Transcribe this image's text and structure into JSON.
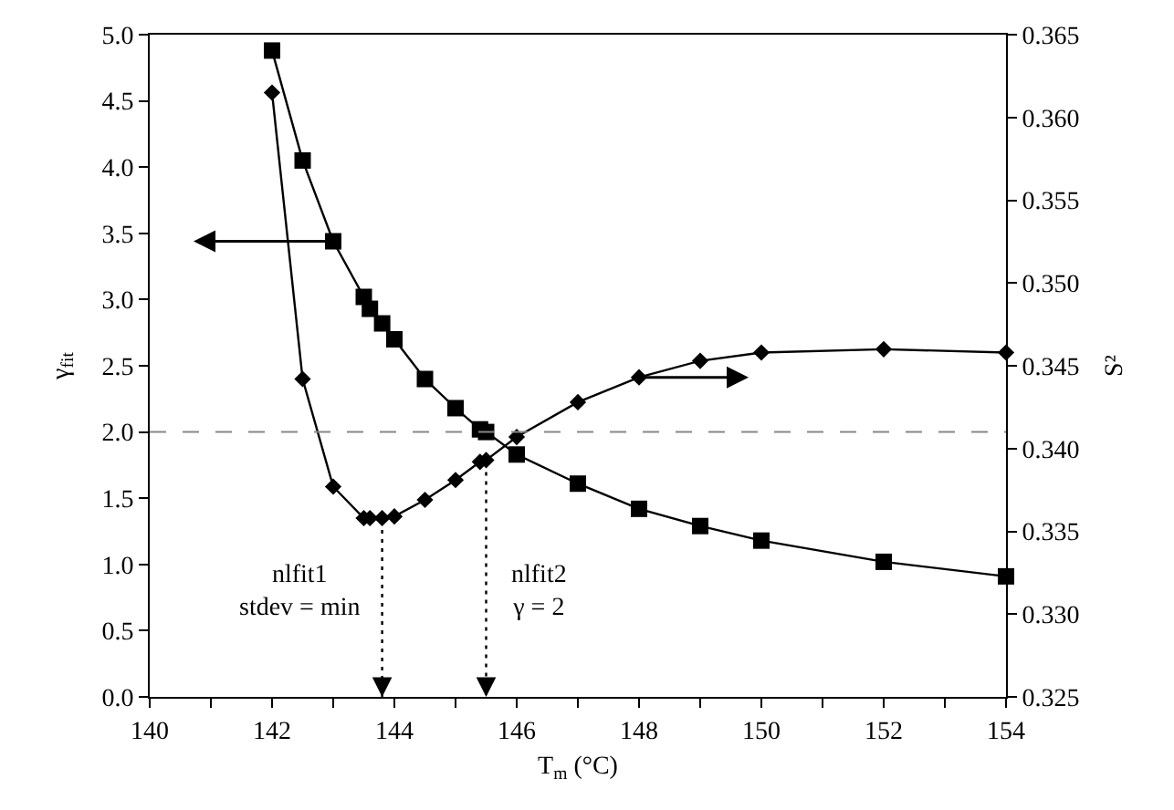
{
  "chart_data": {
    "type": "line",
    "xlabel": "T$_{m}$ (°C)",
    "ylabel": "γ$_{fit}$",
    "y2label": "S²",
    "series": [
      {
        "color": "#000000",
        "marker": "square",
        "x": [
          142,
          142.5,
          143,
          143.5,
          143.6,
          143.8,
          144,
          144.5,
          145,
          145.4,
          145.5,
          146,
          147,
          148,
          149,
          150,
          152,
          154
        ],
        "values": [
          4.88,
          4.05,
          3.44,
          3.02,
          2.93,
          2.82,
          2.7,
          2.4,
          2.18,
          2.02,
          2.0,
          1.83,
          1.61,
          1.42,
          1.29,
          1.18,
          1.02,
          0.91
        ]
      },
      {
        "color": "#000000",
        "marker": "diamond",
        "axis": "y2",
        "x": [
          142,
          142.5,
          143,
          143.5,
          143.6,
          143.8,
          144,
          144.5,
          145,
          145.4,
          145.5,
          146,
          147,
          148,
          149,
          150,
          152,
          154
        ],
        "values": [
          0.3615,
          0.3442,
          0.3377,
          0.3358,
          0.3358,
          0.3358,
          0.3359,
          0.3369,
          0.3381,
          0.3392,
          0.3393,
          0.3407,
          0.3428,
          0.3443,
          0.3453,
          0.3458,
          0.346,
          0.3458
        ]
      }
    ],
    "line_style": "solid",
    "grid": false,
    "xlim": [
      140,
      154
    ],
    "xticks": [
      140,
      {
        "value": 141,
        "label": null
      },
      142,
      {
        "value": 143,
        "label": null
      },
      144,
      {
        "value": 145,
        "label": null
      },
      146,
      {
        "value": 147,
        "label": null
      },
      148,
      {
        "value": 149,
        "label": null
      },
      150,
      {
        "value": 151,
        "label": null
      },
      152,
      {
        "value": 153,
        "label": null
      },
      154
    ],
    "ylim": [
      0,
      5
    ],
    "yticks": [
      {
        "value": 0,
        "label": "0.0"
      },
      0.5,
      {
        "value": 1,
        "label": "1.0"
      },
      1.5,
      {
        "value": 2,
        "label": "2.0"
      },
      2.5,
      {
        "value": 3,
        "label": "3.0"
      },
      3.5,
      {
        "value": 4,
        "label": "4.0"
      },
      4.5,
      {
        "value": 5,
        "label": "5.0"
      }
    ],
    "y2lim": [
      0.325,
      0.365
    ],
    "y2ticks": [
      0.325,
      {
        "value": 0.33,
        "label": "0.330"
      },
      0.335,
      {
        "value": 0.34,
        "label": "0.340"
      },
      0.345,
      {
        "value": 0.35,
        "label": "0.350"
      },
      0.355,
      {
        "value": 0.36,
        "label": "0.360"
      },
      0.365
    ],
    "ref_lines": [
      {
        "axis": "y",
        "value": 2,
        "color": "#888888",
        "line_style": "dashed"
      },
      {
        "axis": "x",
        "value": 143.8,
        "color": "#000000",
        "line_style": "dotted"
      },
      {
        "axis": "x",
        "value": 145.5,
        "color": "#000000",
        "line_style": "dotted"
      }
    ],
    "annotations": [
      "nlfit1\nstdev = min",
      "nlfit2\nγ = 2"
    ]
  }
}
